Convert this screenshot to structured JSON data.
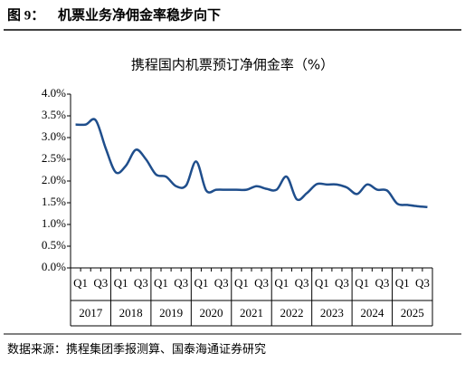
{
  "header": {
    "figure": "图 9：",
    "title": "机票业务净佣金率稳步向下"
  },
  "chart_data": {
    "type": "line",
    "title": "携程国内机票预订净佣金率（%）",
    "categories": [
      "Q1",
      null,
      "Q3",
      null,
      "Q1",
      null,
      "Q3",
      null,
      "Q1",
      null,
      "Q3",
      null,
      "Q1",
      null,
      "Q3",
      null,
      "Q1",
      null,
      "Q3",
      null,
      "Q1",
      null,
      "Q3",
      null,
      "Q1",
      null,
      "Q3",
      null,
      "Q1",
      null,
      "Q3",
      null,
      "Q1",
      null,
      "Q3",
      null
    ],
    "years": [
      "2017",
      "2018",
      "2019",
      "2020",
      "2021",
      "2022",
      "2023",
      "2024",
      "2025"
    ],
    "series": [
      {
        "name": "携程国内机票预订净佣金率",
        "color": "#1f4e8c",
        "values": [
          3.3,
          3.3,
          3.4,
          2.75,
          2.2,
          2.35,
          2.72,
          2.5,
          2.15,
          2.1,
          1.88,
          1.9,
          2.45,
          1.78,
          1.8,
          1.8,
          1.8,
          1.8,
          1.88,
          1.82,
          1.8,
          2.1,
          1.58,
          1.72,
          1.93,
          1.92,
          1.92,
          1.85,
          1.7,
          1.92,
          1.8,
          1.78,
          1.48,
          1.45,
          1.42,
          1.4
        ]
      }
    ],
    "ylim": [
      0,
      4
    ],
    "yticks": [
      {
        "value": 0,
        "label": "0.0%"
      },
      {
        "value": 0.5,
        "label": "0.5%"
      },
      {
        "value": 1,
        "label": "1.0%"
      },
      {
        "value": 1.5,
        "label": "1.5%"
      },
      {
        "value": 2,
        "label": "2.0%"
      },
      {
        "value": 2.5,
        "label": "2.5%"
      },
      {
        "value": 3,
        "label": "3.0%"
      },
      {
        "value": 3.5,
        "label": "3.5%"
      },
      {
        "value": 4,
        "label": "4.0%"
      }
    ],
    "grid": false
  },
  "footer": {
    "source": "数据来源：携程集团季报测算、国泰海通证券研究"
  }
}
